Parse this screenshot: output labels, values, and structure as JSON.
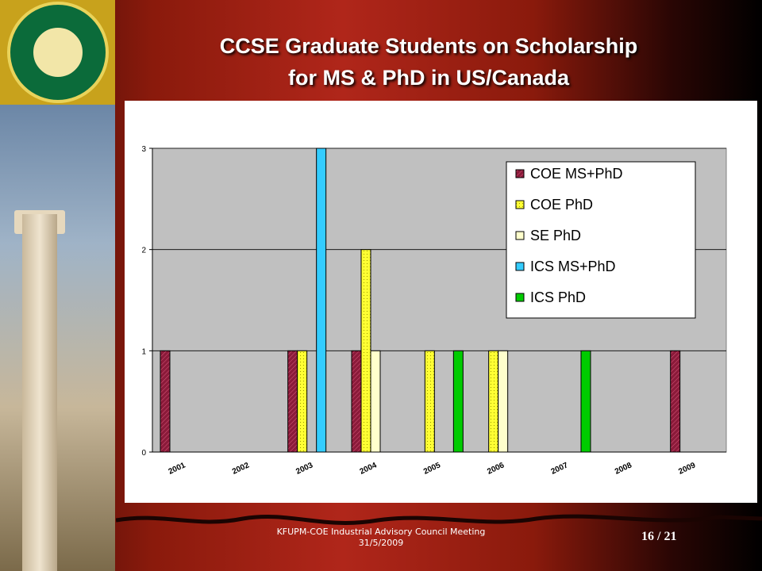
{
  "slide": {
    "title_line1": "CCSE Graduate Students on Scholarship",
    "title_line2": "for MS & PhD in US/Canada",
    "footer_line1": "KFUPM-COE Industrial Advisory Council Meeting",
    "footer_line2": "31/5/2009",
    "slide_number": "16 / 21"
  },
  "colors": {
    "plot_bg": "#c0c0c0",
    "COE MS+PhD": "#8b1a3a",
    "COE PhD": "#ffff33",
    "SE PhD": "#ffffcc",
    "ICS MS+PhD": "#33ccff",
    "ICS PhD": "#00cc00"
  },
  "chart_data": {
    "type": "bar",
    "categories": [
      "2001",
      "2002",
      "2003",
      "2004",
      "2005",
      "2006",
      "2007",
      "2008",
      "2009"
    ],
    "ylim": [
      0,
      3
    ],
    "yticks": [
      "0",
      "1",
      "2",
      "3"
    ],
    "grid": true,
    "legend_position": "top-right",
    "series": [
      {
        "name": "COE MS+PhD",
        "values": [
          1,
          0,
          1,
          1,
          0,
          0,
          0,
          0,
          1
        ]
      },
      {
        "name": "COE PhD",
        "values": [
          0,
          0,
          1,
          2,
          1,
          1,
          0,
          0,
          0
        ]
      },
      {
        "name": "SE PhD",
        "values": [
          0,
          0,
          0,
          1,
          0,
          1,
          0,
          0,
          0
        ]
      },
      {
        "name": "ICS MS+PhD",
        "values": [
          0,
          0,
          3,
          0,
          0,
          0,
          0,
          0,
          0
        ]
      },
      {
        "name": "ICS PhD",
        "values": [
          0,
          0,
          0,
          0,
          1,
          0,
          1,
          0,
          0
        ]
      }
    ]
  }
}
